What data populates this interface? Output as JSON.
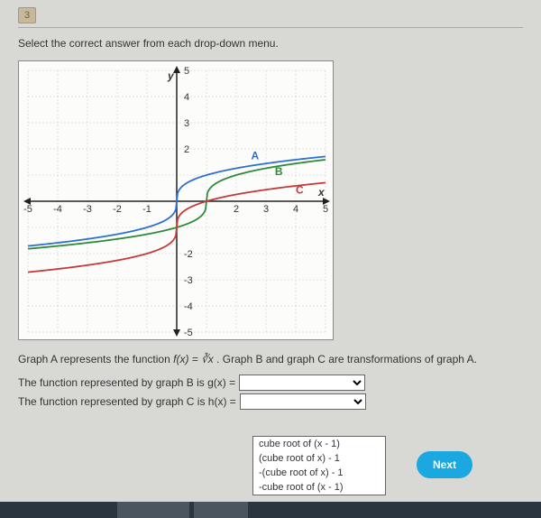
{
  "header_num": "3",
  "instruction": "Select the correct answer from each drop-down menu.",
  "graph": {
    "background": "#fcfcfa",
    "grid_color": "#c8c8c0",
    "axis_color": "#222",
    "xmin": -5,
    "xmax": 5,
    "ymin": -5,
    "ymax": 5,
    "xticks": [
      -5,
      -4,
      -3,
      -2,
      -1,
      2,
      3,
      4,
      5
    ],
    "yticks": [
      -5,
      -4,
      -3,
      -2,
      2,
      3,
      4,
      5
    ],
    "y_label": "y",
    "x_label": "x",
    "curves": {
      "A": {
        "color": "#2e6fd6",
        "label": "A",
        "label_x": 2.5,
        "label_y": 1.6,
        "shift_x": 0,
        "shift_y": 0
      },
      "B": {
        "color": "#2e8a3a",
        "label": "B",
        "label_x": 3.3,
        "label_y": 1.0,
        "shift_x": 1,
        "shift_y": 0
      },
      "C": {
        "color": "#c63a3a",
        "label": "C",
        "label_x": 4.0,
        "label_y": 0.3,
        "shift_x": 0,
        "shift_y": -1
      }
    },
    "tick_font": 11
  },
  "desc_prefix": "Graph A represents the function ",
  "desc_fn_lhs": "f(x) = ",
  "desc_fn_rhs": "∛x",
  "desc_suffix": ". Graph B and graph C are transformations of graph A.",
  "row_b_text": "The function represented by graph B is  g(x) = ",
  "row_c_text": "The function represented by graph C is h(x) = ",
  "dropdown": {
    "options": [
      "cube root of (x - 1)",
      "(cube root of x) - 1",
      "-(cube root of x) - 1",
      "-cube root of (x - 1)"
    ]
  },
  "next_label": "Next"
}
